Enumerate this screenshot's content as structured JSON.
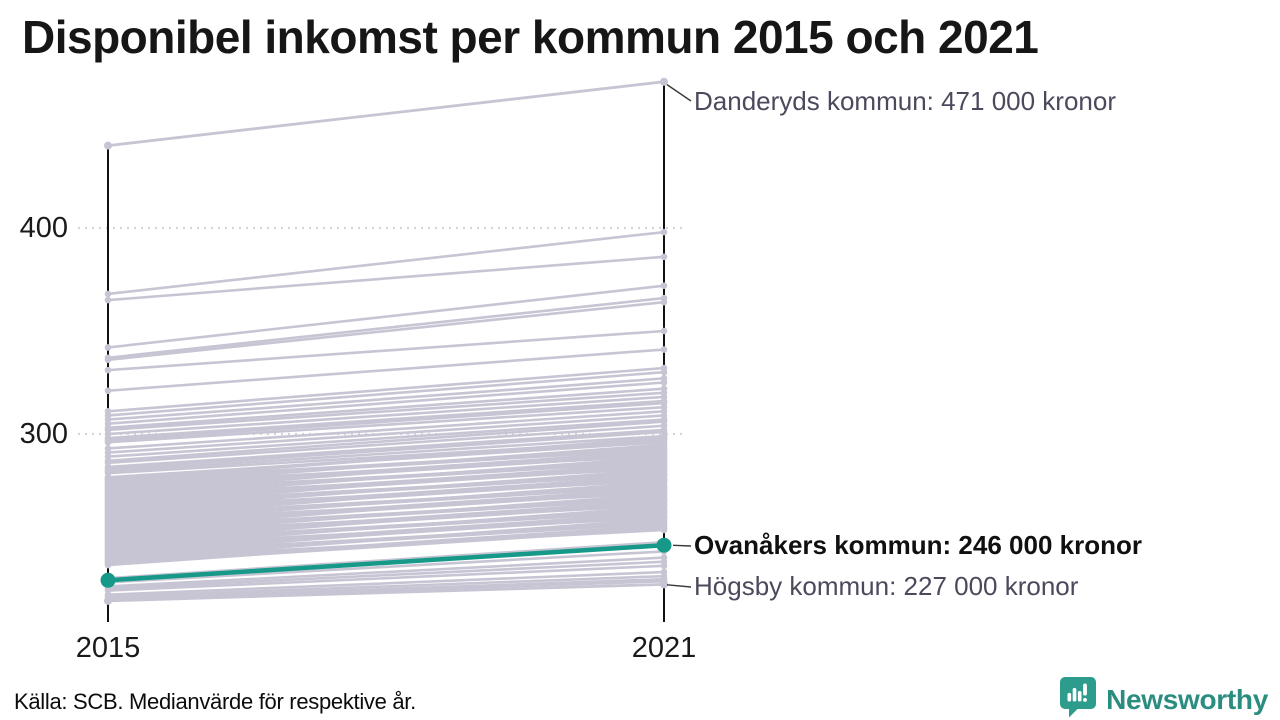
{
  "title": "Disponibel inkomst per kommun 2015 och 2021",
  "footer": {
    "source": "Källa: SCB. Medianvärde för respektive år.",
    "brand": "Newsworthy"
  },
  "colors": {
    "highlight_teal": "#17998a",
    "line_gray": "#c7c5d3",
    "axis_black": "#111111",
    "grid_gray": "#d4d4da",
    "annotation_gray": "#4b4a5c",
    "annotation_dark": "#101010",
    "logo_teal": "#2e9c8d"
  },
  "icons": {
    "logo": "newsworthy-speech-bubble-bar-chart-icon"
  },
  "chart_data": {
    "type": "line",
    "subtype": "slope-chart",
    "x": [
      2015,
      2021
    ],
    "x_tick_labels": {
      "left": "2015",
      "right": "2021"
    },
    "y_ticks": [
      {
        "value": 400,
        "label": "400"
      },
      {
        "value": 300,
        "label": "300"
      }
    ],
    "y_unit": "tusen kronor",
    "grid": true,
    "highlighted_series": [
      {
        "name": "Danderyds kommun",
        "values": [
          440,
          471
        ],
        "style": "gray",
        "label": "Danderyds kommun: 471 000 kronor"
      },
      {
        "name": "Ovanåkers kommun",
        "values": [
          229,
          246
        ],
        "style": "highlight",
        "label": "Ovanåkers kommun: 246 000 kronor"
      },
      {
        "name": "Högsby kommun",
        "values": [
          219,
          227
        ],
        "style": "gray",
        "label": "Högsby kommun: 227 000 kronor"
      }
    ],
    "background_series": [
      [
        368,
        398
      ],
      [
        365,
        386
      ],
      [
        342,
        372
      ],
      [
        337,
        366
      ],
      [
        336,
        364
      ],
      [
        331,
        350
      ],
      [
        321,
        341
      ],
      [
        311,
        332
      ],
      [
        309,
        330
      ],
      [
        307,
        327
      ],
      [
        305,
        325
      ],
      [
        303,
        322
      ],
      [
        302,
        320
      ],
      [
        300,
        318
      ],
      [
        298,
        316
      ],
      [
        297,
        315
      ],
      [
        296,
        313
      ],
      [
        293,
        311
      ],
      [
        291,
        309
      ],
      [
        289,
        307
      ],
      [
        287,
        306
      ],
      [
        286,
        304
      ],
      [
        284,
        302
      ],
      [
        283,
        301
      ],
      [
        282,
        299
      ],
      [
        281,
        297
      ],
      [
        279,
        296
      ],
      [
        278.4,
        297.4
      ],
      [
        277.8,
        292.8
      ],
      [
        277.2,
        298.2
      ],
      [
        276.6,
        292.6
      ],
      [
        276,
        294
      ],
      [
        275.4,
        289.4
      ],
      [
        274.8,
        294.8
      ],
      [
        274.2,
        290.2
      ],
      [
        273.6,
        291.6
      ],
      [
        273,
        290
      ],
      [
        272.4,
        291.4
      ],
      [
        271.8,
        286.8
      ],
      [
        271.2,
        292.2
      ],
      [
        270.6,
        286.6
      ],
      [
        270,
        288
      ],
      [
        269.4,
        283.4
      ],
      [
        268.8,
        288.8
      ],
      [
        268.2,
        284.2
      ],
      [
        267.6,
        285.6
      ],
      [
        267,
        284
      ],
      [
        266.4,
        285.4
      ],
      [
        265.8,
        280.8
      ],
      [
        265.2,
        286.2
      ],
      [
        264.6,
        280.6
      ],
      [
        264,
        282
      ],
      [
        263.4,
        277.4
      ],
      [
        262.8,
        282.8
      ],
      [
        262.2,
        278.2
      ],
      [
        261.6,
        279.6
      ],
      [
        261,
        278
      ],
      [
        260.4,
        279.4
      ],
      [
        259.8,
        274.8
      ],
      [
        259.2,
        280.2
      ],
      [
        258.6,
        274.6
      ],
      [
        258,
        276
      ],
      [
        257.4,
        271.4
      ],
      [
        256.8,
        276.8
      ],
      [
        256.2,
        272.2
      ],
      [
        255.6,
        273.6
      ],
      [
        255,
        272
      ],
      [
        254.4,
        273.4
      ],
      [
        253.8,
        268.8
      ],
      [
        253.2,
        274.2
      ],
      [
        252.6,
        268.6
      ],
      [
        252,
        270
      ],
      [
        251.4,
        265.4
      ],
      [
        250.8,
        270.8
      ],
      [
        250.2,
        266.2
      ],
      [
        249.6,
        267.6
      ],
      [
        249,
        266
      ],
      [
        248.4,
        267.4
      ],
      [
        247.8,
        262.8
      ],
      [
        247.2,
        268.2
      ],
      [
        246.6,
        262.6
      ],
      [
        246,
        264
      ],
      [
        245.4,
        259.4
      ],
      [
        244.8,
        264.8
      ],
      [
        244.2,
        260.2
      ],
      [
        243.6,
        261.6
      ],
      [
        243,
        260
      ],
      [
        242.4,
        261.4
      ],
      [
        241.8,
        256.8
      ],
      [
        241.2,
        262.2
      ],
      [
        240.6,
        256.6
      ],
      [
        240,
        258
      ],
      [
        239.4,
        253.4
      ],
      [
        238.8,
        258.8
      ],
      [
        238.2,
        254.2
      ],
      [
        237.6,
        255.6
      ],
      [
        237,
        254
      ],
      [
        236.4,
        255.4
      ],
      [
        230,
        247.5
      ],
      [
        228,
        243
      ],
      [
        226,
        240
      ],
      [
        225,
        238
      ],
      [
        224,
        236
      ],
      [
        222,
        233
      ],
      [
        221,
        231
      ],
      [
        220,
        229.5
      ],
      [
        219.5,
        228.5
      ]
    ]
  }
}
